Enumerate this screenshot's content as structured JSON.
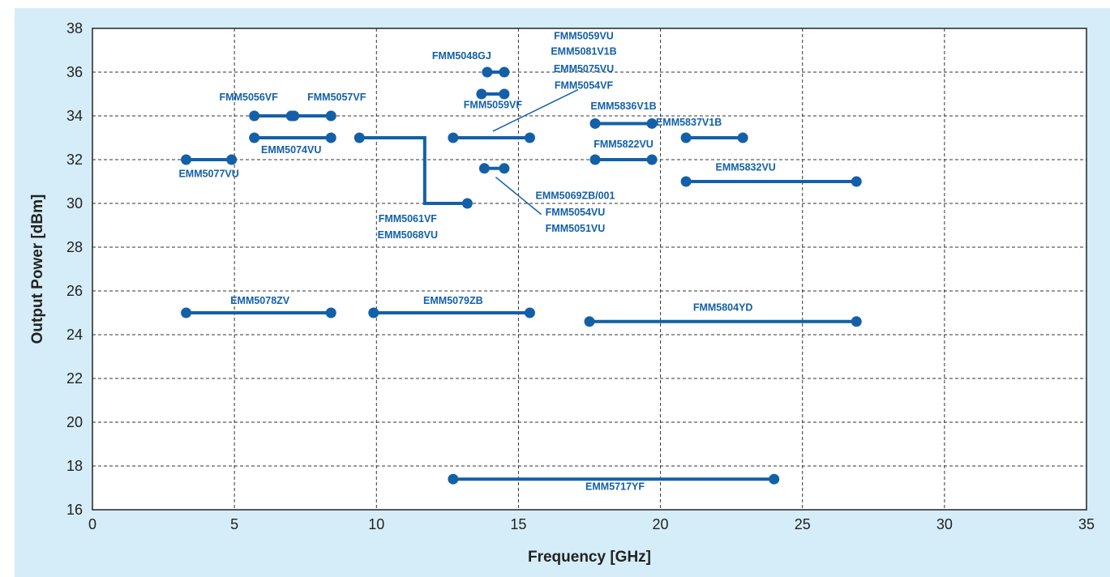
{
  "chart_data": {
    "type": "line",
    "title": "",
    "xlabel": "Frequency [GHz]",
    "ylabel": "Output Power [dBm]",
    "xlim": [
      0,
      35
    ],
    "ylim": [
      16,
      38
    ],
    "x_ticks": [
      0,
      5,
      10,
      15,
      20,
      25,
      30,
      35
    ],
    "y_ticks": [
      16,
      18,
      20,
      22,
      24,
      26,
      28,
      30,
      32,
      34,
      36,
      38
    ],
    "grid": true,
    "series_color": "#1460a8",
    "background_color": "#d5edf8",
    "series": [
      {
        "name": "EMM5077VU",
        "points": [
          [
            3.3,
            32
          ],
          [
            4.9,
            32
          ]
        ]
      },
      {
        "name": "FMM5056VF",
        "points": [
          [
            5.7,
            34
          ],
          [
            7.1,
            34
          ]
        ]
      },
      {
        "name": "FMM5057VF",
        "points": [
          [
            7.0,
            34
          ],
          [
            8.4,
            34
          ]
        ]
      },
      {
        "name": "EMM5074VU",
        "points": [
          [
            5.7,
            33
          ],
          [
            8.4,
            33
          ]
        ]
      },
      {
        "name": "FMM5061VF / EMM5068VU",
        "points": [
          [
            9.4,
            33
          ],
          [
            11.7,
            33
          ],
          [
            11.7,
            30
          ],
          [
            13.2,
            30
          ]
        ]
      },
      {
        "name": "FMM5048GJ",
        "points": [
          [
            13.9,
            36
          ],
          [
            14.5,
            36
          ]
        ]
      },
      {
        "name": "FMM5059VF",
        "points": [
          [
            13.7,
            35
          ],
          [
            14.5,
            35
          ]
        ]
      },
      {
        "name": "FMM5059VU / EMM5081V1B / EMM5075VU / FMM5054VF",
        "points": [
          [
            12.7,
            33
          ],
          [
            15.4,
            33
          ]
        ]
      },
      {
        "name": "EMM5069ZB/001 / FMM5054VU / FMM5051VU",
        "points": [
          [
            13.8,
            31.6
          ],
          [
            14.5,
            31.6
          ]
        ]
      },
      {
        "name": "EMM5836V1B",
        "points": [
          [
            17.7,
            33.65
          ],
          [
            19.7,
            33.65
          ]
        ]
      },
      {
        "name": "EMM5837V1B",
        "points": [
          [
            20.9,
            33
          ],
          [
            22.9,
            33
          ]
        ]
      },
      {
        "name": "FMM5822VU",
        "points": [
          [
            17.7,
            32
          ],
          [
            19.7,
            32
          ]
        ]
      },
      {
        "name": "EMM5832VU",
        "points": [
          [
            20.9,
            31
          ],
          [
            26.9,
            31
          ]
        ]
      },
      {
        "name": "EMM5078ZV",
        "points": [
          [
            3.3,
            25
          ],
          [
            8.4,
            25
          ]
        ]
      },
      {
        "name": "EMM5079ZB",
        "points": [
          [
            9.9,
            25
          ],
          [
            15.4,
            25
          ]
        ]
      },
      {
        "name": "FMM5804YD",
        "points": [
          [
            17.5,
            24.6
          ],
          [
            26.9,
            24.6
          ]
        ]
      },
      {
        "name": "EMM5717YF",
        "points": [
          [
            12.7,
            17.4
          ],
          [
            24.0,
            17.4
          ]
        ]
      }
    ],
    "annotations": [
      {
        "text": "EMM5077VU",
        "x": 4.1,
        "y": 31.2
      },
      {
        "text": "FMM5056VF",
        "x": 5.5,
        "y": 34.7
      },
      {
        "text": "FMM5057VF",
        "x": 8.6,
        "y": 34.7
      },
      {
        "text": "EMM5074VU",
        "x": 7.0,
        "y": 32.3
      },
      {
        "text": "FMM5061VF",
        "x": 11.1,
        "y": 29.15
      },
      {
        "text": "EMM5068VU",
        "x": 11.1,
        "y": 28.4
      },
      {
        "text": "FMM5048GJ",
        "x": 13.0,
        "y": 36.6
      },
      {
        "text": "FMM5059VF",
        "x": 14.1,
        "y": 34.35
      },
      {
        "text": "FMM5059VU",
        "x": 17.3,
        "y": 37.5
      },
      {
        "text": "EMM5081V1B",
        "x": 17.3,
        "y": 36.8
      },
      {
        "text": "EMM5075VU",
        "x": 17.3,
        "y": 36.0
      },
      {
        "text": "FMM5054VF",
        "x": 17.3,
        "y": 35.25
      },
      {
        "text": "EMM5836V1B",
        "x": 18.7,
        "y": 34.3
      },
      {
        "text": "EMM5837V1B",
        "x": 21.0,
        "y": 33.55
      },
      {
        "text": "FMM5822VU",
        "x": 18.7,
        "y": 32.55
      },
      {
        "text": "EMM5832VU",
        "x": 23.0,
        "y": 31.5
      },
      {
        "text": "EMM5069ZB/001",
        "x": 17.0,
        "y": 30.2
      },
      {
        "text": "FMM5054VU",
        "x": 17.0,
        "y": 29.45
      },
      {
        "text": "FMM5051VU",
        "x": 17.0,
        "y": 28.7
      },
      {
        "text": "EMM5078ZV",
        "x": 5.9,
        "y": 25.4
      },
      {
        "text": "EMM5079ZB",
        "x": 12.7,
        "y": 25.4
      },
      {
        "text": "FMM5804YD",
        "x": 22.2,
        "y": 25.1
      },
      {
        "text": "EMM5717YF",
        "x": 18.4,
        "y": 16.9
      }
    ],
    "leaders": [
      {
        "from": [
          14.1,
          33.3
        ],
        "to": [
          17.1,
          35.2
        ]
      },
      {
        "from": [
          14.2,
          31.2
        ],
        "to": [
          15.8,
          29.5
        ]
      }
    ]
  }
}
